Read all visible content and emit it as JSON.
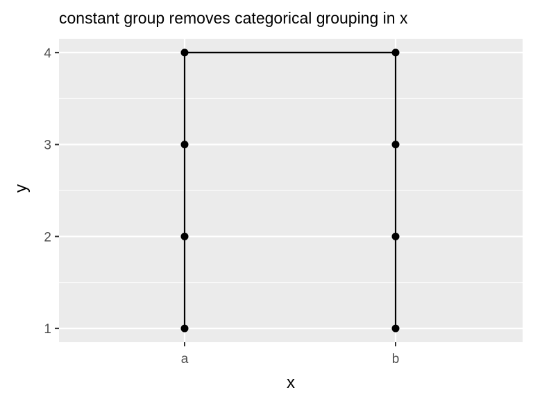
{
  "chart_data": {
    "type": "line",
    "title": "constant group removes categorical grouping in x",
    "xlabel": "x",
    "ylabel": "y",
    "categories": [
      "a",
      "b"
    ],
    "x": [
      "a",
      "a",
      "a",
      "a",
      "b",
      "b",
      "b",
      "b"
    ],
    "y": [
      1,
      2,
      3,
      4,
      4,
      3,
      2,
      1
    ],
    "ylim": [
      0.85,
      4.15
    ],
    "yticks": [
      1,
      2,
      3,
      4
    ],
    "grid": true,
    "legend": "none",
    "colors": {
      "panel": "#ebebeb",
      "gridline": "#ffffff",
      "line": "#000000",
      "point": "#000000",
      "tick": "#333333"
    }
  }
}
